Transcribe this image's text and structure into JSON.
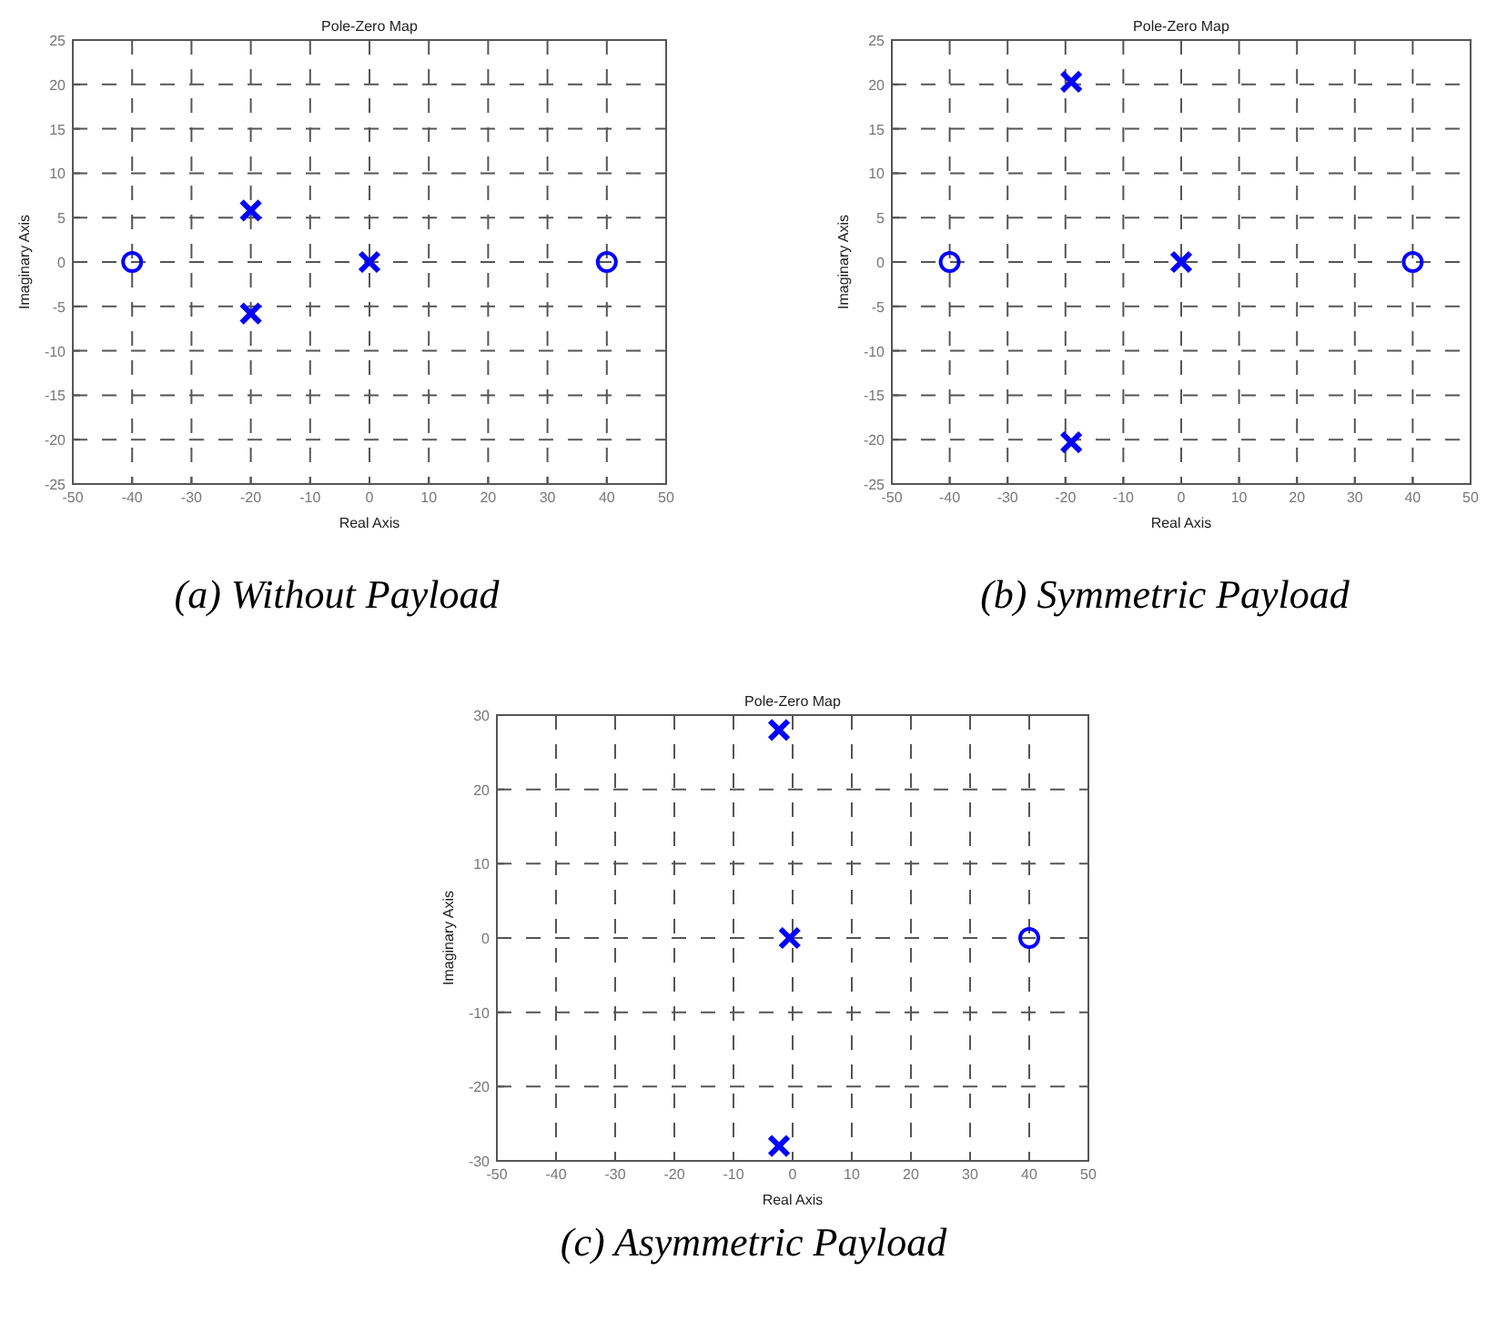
{
  "chart_data": [
    {
      "type": "scatter",
      "title": "Pole-Zero Map",
      "xlabel": "Real Axis",
      "ylabel": "Imaginary Axis",
      "xlim": [
        -50,
        50
      ],
      "ylim": [
        -25,
        25
      ],
      "xticks": [
        -50,
        -40,
        -30,
        -20,
        -10,
        0,
        10,
        20,
        30,
        40,
        50
      ],
      "yticks": [
        -25,
        -20,
        -15,
        -10,
        -5,
        0,
        5,
        10,
        15,
        20,
        25
      ],
      "grid": true,
      "annotations": [
        "(a) Without Payload"
      ],
      "series": [
        {
          "color": "#0000ff",
          "marker": "cross",
          "x": [
            -20,
            -20,
            0
          ],
          "values": [
            5.8,
            -5.8,
            0
          ]
        },
        {
          "color": "#0000ff",
          "marker": "circle",
          "x": [
            -40,
            40
          ],
          "values": [
            0,
            0
          ]
        }
      ]
    },
    {
      "type": "scatter",
      "title": "Pole-Zero Map",
      "xlabel": "Real Axis",
      "ylabel": "Imaginary Axis",
      "xlim": [
        -50,
        50
      ],
      "ylim": [
        -25,
        25
      ],
      "xticks": [
        -50,
        -40,
        -30,
        -20,
        -10,
        0,
        10,
        20,
        30,
        40,
        50
      ],
      "yticks": [
        -25,
        -20,
        -15,
        -10,
        -5,
        0,
        5,
        10,
        15,
        20,
        25
      ],
      "grid": true,
      "annotations": [
        "(b) Symmetric Payload"
      ],
      "series": [
        {
          "color": "#0000ff",
          "marker": "cross",
          "x": [
            -19,
            -19,
            0
          ],
          "values": [
            20.3,
            -20.3,
            0
          ]
        },
        {
          "color": "#0000ff",
          "marker": "circle",
          "x": [
            -40,
            40
          ],
          "values": [
            0,
            0
          ]
        }
      ]
    },
    {
      "type": "scatter",
      "title": "Pole-Zero Map",
      "xlabel": "Real Axis",
      "ylabel": "Imaginary Axis",
      "xlim": [
        -50,
        50
      ],
      "ylim": [
        -30,
        30
      ],
      "xticks": [
        -50,
        -40,
        -30,
        -20,
        -10,
        0,
        10,
        20,
        30,
        40,
        50
      ],
      "yticks": [
        -30,
        -20,
        -10,
        0,
        10,
        20,
        30
      ],
      "grid": true,
      "annotations": [
        "(c) Asymmetric Payload"
      ],
      "series": [
        {
          "color": "#0000ff",
          "marker": "cross",
          "x": [
            -2.3,
            -2.3,
            -0.5
          ],
          "values": [
            28,
            -28,
            0
          ]
        },
        {
          "color": "#0000ff",
          "marker": "circle",
          "x": [
            40
          ],
          "values": [
            0
          ]
        }
      ]
    }
  ]
}
